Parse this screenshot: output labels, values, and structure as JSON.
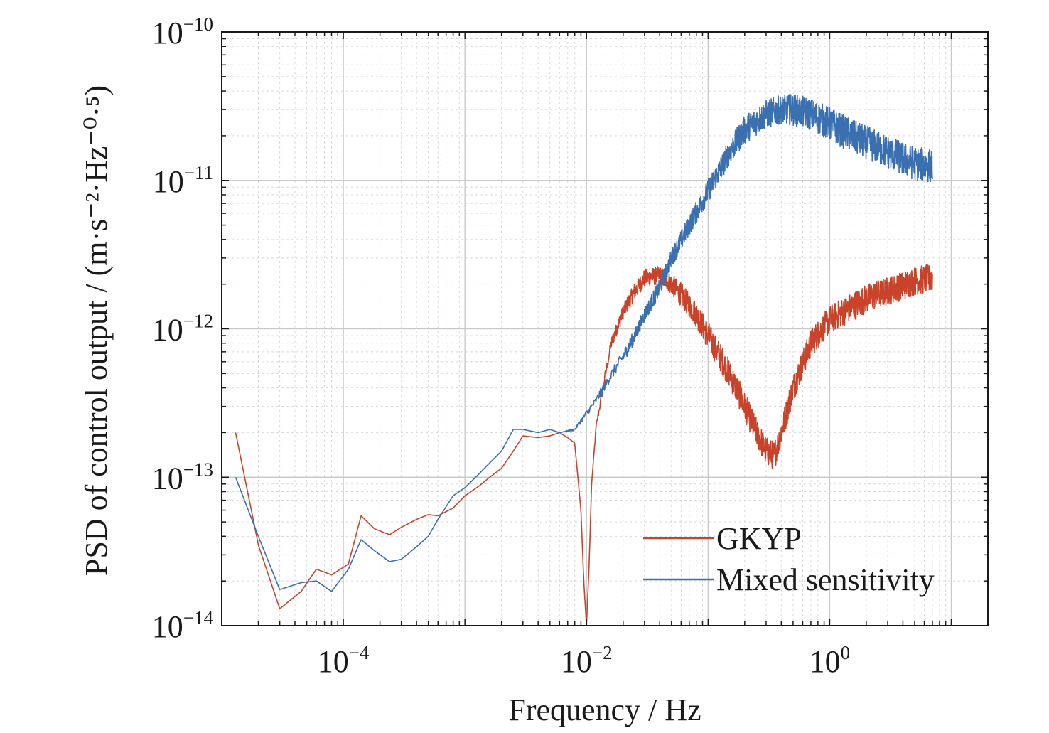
{
  "chart_data": {
    "type": "line",
    "title": "",
    "xlabel": "Frequency / Hz",
    "ylabel": "PSD of control output / (m·s⁻²·Hz⁻⁰·⁵)",
    "x_scale": "log",
    "y_scale": "log",
    "xlim": [
      1e-05,
      20
    ],
    "ylim": [
      1e-14,
      1e-10
    ],
    "grid": true,
    "legend_position": "bottom-right",
    "x_ticks": [
      {
        "value": 0.0001,
        "base": "10",
        "exp": "−4"
      },
      {
        "value": 0.01,
        "base": "10",
        "exp": "−2"
      },
      {
        "value": 1,
        "base": "10",
        "exp": "0"
      }
    ],
    "y_ticks": [
      {
        "value": 1e-14,
        "base": "10",
        "exp": "−14"
      },
      {
        "value": 1e-13,
        "base": "10",
        "exp": "−13"
      },
      {
        "value": 1e-12,
        "base": "10",
        "exp": "−12"
      },
      {
        "value": 1e-11,
        "base": "10",
        "exp": "−11"
      },
      {
        "value": 1e-10,
        "base": "10",
        "exp": "−10"
      }
    ],
    "series": [
      {
        "name": "GKYP",
        "color": "#c8432a",
        "x": [
          1.3e-05,
          2e-05,
          3e-05,
          4.5e-05,
          6e-05,
          8e-05,
          0.00011,
          0.00014,
          0.00018,
          0.00024,
          0.0003,
          0.0004,
          0.0005,
          0.0006,
          0.0008,
          0.001,
          0.0013,
          0.0016,
          0.002,
          0.0025,
          0.003,
          0.004,
          0.005,
          0.006,
          0.007,
          0.008,
          0.009,
          0.0095,
          0.01,
          0.0105,
          0.011,
          0.012,
          0.014,
          0.016,
          0.02,
          0.025,
          0.03,
          0.04,
          0.05,
          0.06,
          0.08,
          0.1,
          0.15,
          0.2,
          0.25,
          0.3,
          0.35,
          0.4,
          0.5,
          0.7,
          1,
          1.5,
          2,
          3,
          4,
          5,
          7
        ],
        "y": [
          2e-13,
          3.5e-14,
          1.3e-14,
          1.7e-14,
          2.4e-14,
          2.2e-14,
          2.6e-14,
          5.5e-14,
          4.5e-14,
          4.1e-14,
          4.6e-14,
          5.2e-14,
          5.6e-14,
          5.5e-14,
          6.2e-14,
          7.5e-14,
          8.7e-14,
          1e-13,
          1.15e-13,
          1.5e-13,
          1.9e-13,
          1.85e-13,
          1.9e-13,
          2e-13,
          1.85e-13,
          1.7e-13,
          6e-14,
          2e-14,
          1e-14,
          2.5e-14,
          9e-14,
          2.2e-13,
          4.5e-13,
          8e-13,
          1.3e-12,
          1.8e-12,
          2.2e-12,
          2.3e-12,
          2e-12,
          1.7e-12,
          1.25e-12,
          9e-13,
          5e-13,
          3e-13,
          2e-13,
          1.5e-13,
          1.4e-13,
          2e-13,
          4e-13,
          8e-13,
          1.15e-12,
          1.4e-12,
          1.6e-12,
          1.8e-12,
          1.95e-12,
          2.1e-12,
          2.2e-12
        ],
        "noise_band": [
          1,
          1,
          1,
          1,
          1,
          1,
          1,
          1,
          1,
          1,
          1,
          1,
          1,
          1,
          1,
          1,
          1,
          1,
          1,
          1,
          1,
          1,
          1,
          1,
          1,
          1,
          1,
          1,
          1,
          1,
          1,
          1.05,
          1.08,
          1.1,
          1.12,
          1.15,
          1.15,
          1.15,
          1.18,
          1.2,
          1.22,
          1.25,
          1.25,
          1.25,
          1.25,
          1.25,
          1.25,
          1.25,
          1.25,
          1.25,
          1.25,
          1.25,
          1.25,
          1.25,
          1.25,
          1.25,
          1.25
        ]
      },
      {
        "name": "Mixed sensitivity",
        "color": "#3a6fb0",
        "x": [
          1.3e-05,
          2e-05,
          3e-05,
          4.5e-05,
          6e-05,
          8e-05,
          0.00011,
          0.00014,
          0.00018,
          0.00024,
          0.0003,
          0.0004,
          0.0005,
          0.0006,
          0.0008,
          0.001,
          0.0013,
          0.0016,
          0.002,
          0.0025,
          0.003,
          0.004,
          0.005,
          0.006,
          0.008,
          0.01,
          0.012,
          0.015,
          0.02,
          0.025,
          0.03,
          0.04,
          0.05,
          0.07,
          0.1,
          0.15,
          0.2,
          0.3,
          0.4,
          0.5,
          0.7,
          1,
          1.5,
          2,
          3,
          4,
          5,
          7
        ],
        "y": [
          1e-13,
          4e-14,
          1.75e-14,
          1.95e-14,
          2e-14,
          1.7e-14,
          2.4e-14,
          3.8e-14,
          3.2e-14,
          2.7e-14,
          2.8e-14,
          3.4e-14,
          4e-14,
          5.2e-14,
          7.5e-14,
          8.5e-14,
          1.05e-13,
          1.25e-13,
          1.5e-13,
          2.1e-13,
          2.1e-13,
          2e-13,
          2.1e-13,
          2e-13,
          2.1e-13,
          2.7e-13,
          3.3e-13,
          4.5e-13,
          6.5e-13,
          9e-13,
          1.25e-12,
          1.9e-12,
          3e-12,
          5e-12,
          8.5e-12,
          1.55e-11,
          2.2e-11,
          2.8e-11,
          3e-11,
          3e-11,
          2.8e-11,
          2.4e-11,
          2e-11,
          1.8e-11,
          1.55e-11,
          1.4e-11,
          1.3e-11,
          1.25e-11
        ],
        "noise_band": [
          1,
          1,
          1,
          1,
          1,
          1,
          1,
          1,
          1,
          1,
          1,
          1,
          1,
          1,
          1,
          1,
          1,
          1,
          1,
          1,
          1,
          1,
          1,
          1,
          1.02,
          1.05,
          1.06,
          1.08,
          1.1,
          1.12,
          1.12,
          1.14,
          1.15,
          1.18,
          1.2,
          1.22,
          1.25,
          1.25,
          1.25,
          1.28,
          1.28,
          1.3,
          1.3,
          1.3,
          1.3,
          1.3,
          1.3,
          1.3
        ]
      }
    ],
    "legend": [
      {
        "label": "GKYP",
        "color": "#c8432a"
      },
      {
        "label": "Mixed sensitivity",
        "color": "#3a6fb0"
      }
    ]
  }
}
